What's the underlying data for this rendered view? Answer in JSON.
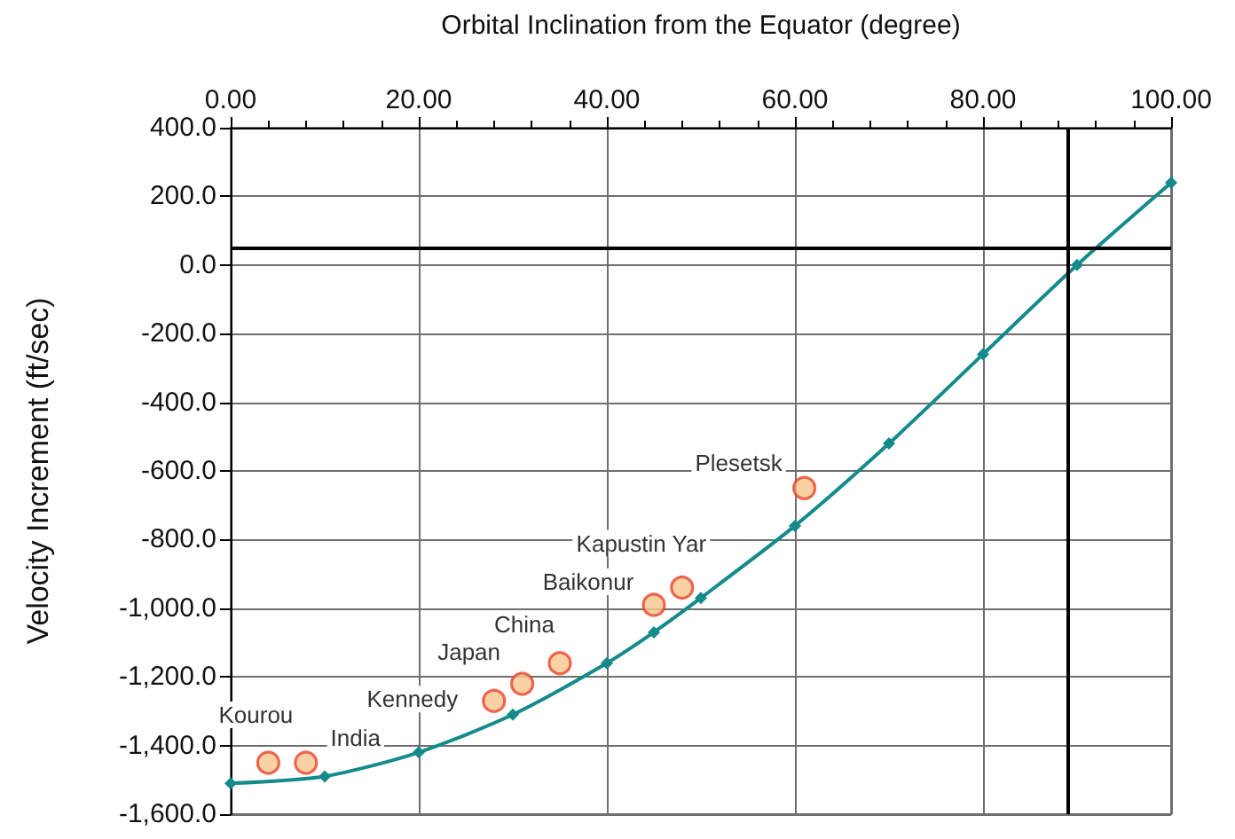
{
  "chart_data": {
    "type": "line",
    "xlabel": "Orbital Inclination from the Equator (degree)",
    "ylabel": "Velocity Increment (ft/sec)",
    "xlim": [
      0,
      100
    ],
    "xticks": [
      {
        "value": 0,
        "label": "0.00"
      },
      {
        "value": 20,
        "label": "20.00"
      },
      {
        "value": 40,
        "label": "40.00"
      },
      {
        "value": 60,
        "label": "60.00"
      },
      {
        "value": 80,
        "label": "80.00"
      },
      {
        "value": 100,
        "label": "100.00"
      }
    ],
    "ylim": [
      -1600,
      400
    ],
    "yticks": [
      {
        "value": -1600,
        "label": "-1,600.0"
      },
      {
        "value": -1400,
        "label": "-1,400.0"
      },
      {
        "value": -1200,
        "label": "-1,200.0"
      },
      {
        "value": -1000,
        "label": "-1,000.0"
      },
      {
        "value": -800,
        "label": "-800.0"
      },
      {
        "value": -600,
        "label": "-600.0"
      },
      {
        "value": -400,
        "label": "-400.0"
      },
      {
        "value": -200,
        "label": "-200.0"
      },
      {
        "value": 0,
        "label": "0.0"
      },
      {
        "value": 200,
        "label": "200.0"
      },
      {
        "value": 400,
        "label": "400.0"
      }
    ],
    "grid": true,
    "series": [
      {
        "color": "#148a8b",
        "marker": "diamond",
        "x": [
          0,
          10,
          20,
          30,
          40,
          45,
          50,
          60,
          70,
          80,
          90,
          100
        ],
        "values": [
          -1510,
          -1490,
          -1420,
          -1310,
          -1160,
          -1070,
          -970,
          -760,
          -520,
          -260,
          0,
          240
        ]
      },
      {
        "type": "scatter",
        "color": "#f9c68c",
        "marker": "circle",
        "x": [
          4,
          8,
          28,
          31,
          35,
          45,
          48,
          61
        ],
        "values": [
          -1450,
          -1450,
          -1270,
          -1220,
          -1160,
          -990,
          -940,
          -650
        ]
      }
    ],
    "ref_lines": [
      {
        "axis": "y",
        "value": 50,
        "color": "#000000"
      },
      {
        "axis": "x",
        "value": 89,
        "color": "#000000"
      }
    ],
    "annotations": [
      {
        "text": "Kourou",
        "x": 4,
        "y": -1450
      },
      {
        "text": "India",
        "x": 8,
        "y": -1450
      },
      {
        "text": "Kennedy",
        "x": 28,
        "y": -1270
      },
      {
        "text": "Japan",
        "x": 31,
        "y": -1220
      },
      {
        "text": "China",
        "x": 35,
        "y": -1160
      },
      {
        "text": "Baikonur",
        "x": 45,
        "y": -990
      },
      {
        "text": "Kapustin Yar",
        "x": 48,
        "y": -940
      },
      {
        "text": "Plesetsk",
        "x": 61,
        "y": -650
      }
    ]
  }
}
